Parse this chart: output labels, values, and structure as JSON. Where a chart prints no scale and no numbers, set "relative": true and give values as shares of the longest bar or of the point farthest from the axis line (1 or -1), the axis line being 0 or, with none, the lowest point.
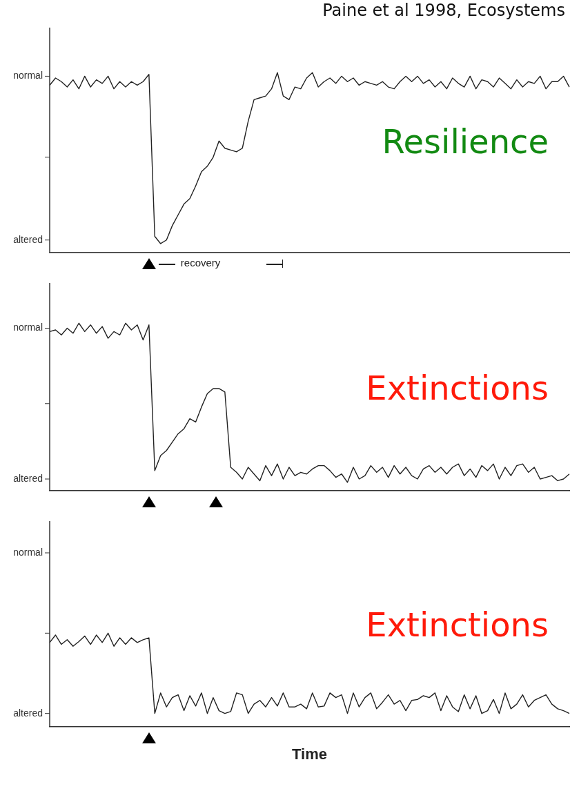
{
  "chart_data": [
    {
      "type": "line",
      "title": "Paine et al 1998, Ecosystems",
      "relative": true,
      "annotations": [
        "Resilience",
        "recovery",
        "normal",
        "altered"
      ],
      "tick_labels": "y",
      "marker": "none",
      "line_style": "solid",
      "grid": false,
      "legend": false,
      "categories": [
        null,
        null,
        null,
        null,
        null,
        null,
        null,
        null,
        null,
        null,
        null,
        null,
        null,
        null,
        null,
        null,
        null,
        null,
        null,
        null,
        null,
        null,
        null,
        null,
        null,
        null,
        null,
        null,
        null,
        null,
        null,
        null,
        null,
        null,
        null,
        null,
        null,
        null,
        null,
        null,
        null,
        null,
        null,
        null,
        null,
        null,
        null,
        null,
        null,
        null,
        null,
        null,
        null,
        null,
        null,
        null,
        null,
        null,
        null,
        null,
        null,
        null,
        null,
        null,
        null,
        null,
        null,
        null,
        null,
        null,
        null,
        null,
        null,
        null,
        null,
        null,
        null,
        null,
        null,
        null,
        null,
        null,
        null,
        null,
        null,
        null,
        null,
        null,
        null,
        null
      ],
      "series": [
        {
          "color": "#222222",
          "values": [
            0.93,
            0.97,
            0.95,
            0.92,
            0.96,
            0.91,
            0.98,
            0.92,
            0.96,
            0.94,
            0.98,
            0.91,
            0.95,
            0.92,
            0.95,
            0.93,
            0.95,
            0.99,
            0.09,
            0.05,
            0.07,
            0.15,
            0.21,
            0.27,
            0.3,
            0.37,
            0.45,
            0.48,
            0.53,
            0.62,
            0.58,
            0.57,
            0.56,
            0.58,
            0.73,
            0.85,
            0.86,
            0.87,
            0.91,
            1.0,
            0.87,
            0.85,
            0.92,
            0.91,
            0.97,
            1.0,
            0.92,
            0.95,
            0.97,
            0.94,
            0.98,
            0.95,
            0.97,
            0.93,
            0.95,
            0.94,
            0.93,
            0.95,
            0.92,
            0.91,
            0.95,
            0.98,
            0.95,
            0.98,
            0.94,
            0.96,
            0.92,
            0.95,
            0.91,
            0.97,
            0.94,
            0.92,
            0.98,
            0.91,
            0.96,
            0.95,
            0.92,
            0.97,
            0.94,
            0.91,
            0.96,
            0.92,
            0.95,
            0.94,
            0.98,
            0.91,
            0.95,
            0.95,
            0.98,
            0.92
          ]
        }
      ]
    },
    {
      "type": "line",
      "relative": true,
      "annotations": [
        "Extinctions",
        "normal",
        "altered"
      ],
      "tick_labels": "y",
      "marker": "none",
      "line_style": "solid",
      "grid": false,
      "legend": false,
      "categories": [
        null,
        null,
        null,
        null,
        null,
        null,
        null,
        null,
        null,
        null,
        null,
        null,
        null,
        null,
        null,
        null,
        null,
        null,
        null,
        null,
        null,
        null,
        null,
        null,
        null,
        null,
        null,
        null,
        null,
        null,
        null,
        null,
        null,
        null,
        null,
        null,
        null,
        null,
        null,
        null,
        null,
        null,
        null,
        null,
        null,
        null,
        null,
        null,
        null,
        null,
        null,
        null,
        null,
        null,
        null,
        null,
        null,
        null,
        null,
        null,
        null,
        null,
        null,
        null,
        null,
        null,
        null,
        null,
        null,
        null,
        null,
        null,
        null,
        null,
        null,
        null,
        null,
        null,
        null,
        null,
        null,
        null,
        null,
        null,
        null,
        null,
        null,
        null,
        null,
        null
      ],
      "series": [
        {
          "color": "#222222",
          "values": [
            0.95,
            0.96,
            0.93,
            0.97,
            0.94,
            1.0,
            0.95,
            0.99,
            0.94,
            0.98,
            0.91,
            0.95,
            0.93,
            1.0,
            0.96,
            0.99,
            0.9,
            0.99,
            0.12,
            0.21,
            0.24,
            0.29,
            0.34,
            0.37,
            0.43,
            0.41,
            0.5,
            0.58,
            0.61,
            0.61,
            0.59,
            0.14,
            0.11,
            0.07,
            0.14,
            0.1,
            0.06,
            0.15,
            0.09,
            0.16,
            0.07,
            0.14,
            0.09,
            0.11,
            0.1,
            0.13,
            0.15,
            0.15,
            0.12,
            0.08,
            0.1,
            0.05,
            0.14,
            0.07,
            0.09,
            0.15,
            0.11,
            0.14,
            0.08,
            0.15,
            0.1,
            0.14,
            0.09,
            0.07,
            0.13,
            0.15,
            0.11,
            0.14,
            0.1,
            0.14,
            0.16,
            0.09,
            0.13,
            0.08,
            0.15,
            0.12,
            0.16,
            0.07,
            0.14,
            0.09,
            0.15,
            0.16,
            0.11,
            0.14,
            0.07,
            0.08,
            0.09,
            0.06,
            0.07,
            0.1
          ]
        }
      ]
    },
    {
      "type": "line",
      "relative": true,
      "xlabel": "Time",
      "annotations": [
        "Extinctions",
        "normal",
        "altered"
      ],
      "tick_labels": "y",
      "marker": "none",
      "line_style": "solid",
      "grid": false,
      "legend": false,
      "categories": [
        null,
        null,
        null,
        null,
        null,
        null,
        null,
        null,
        null,
        null,
        null,
        null,
        null,
        null,
        null,
        null,
        null,
        null,
        null,
        null,
        null,
        null,
        null,
        null,
        null,
        null,
        null,
        null,
        null,
        null,
        null,
        null,
        null,
        null,
        null,
        null,
        null,
        null,
        null,
        null,
        null,
        null,
        null,
        null,
        null,
        null,
        null,
        null,
        null,
        null,
        null,
        null,
        null,
        null,
        null,
        null,
        null,
        null,
        null,
        null,
        null,
        null,
        null,
        null,
        null,
        null,
        null,
        null,
        null,
        null,
        null,
        null,
        null,
        null,
        null,
        null,
        null,
        null,
        null,
        null,
        null,
        null,
        null,
        null,
        null,
        null,
        null,
        null,
        null,
        null
      ],
      "series": [
        {
          "color": "#222222",
          "values": [
            0.9,
            0.98,
            0.88,
            0.93,
            0.86,
            0.91,
            0.97,
            0.88,
            0.98,
            0.9,
            1.0,
            0.86,
            0.95,
            0.88,
            0.95,
            0.9,
            0.93,
            0.95,
            0.14,
            0.36,
            0.21,
            0.31,
            0.34,
            0.17,
            0.33,
            0.22,
            0.36,
            0.14,
            0.31,
            0.17,
            0.14,
            0.16,
            0.36,
            0.34,
            0.14,
            0.24,
            0.28,
            0.21,
            0.31,
            0.22,
            0.36,
            0.21,
            0.21,
            0.24,
            0.19,
            0.36,
            0.21,
            0.22,
            0.36,
            0.31,
            0.34,
            0.14,
            0.36,
            0.21,
            0.31,
            0.36,
            0.19,
            0.26,
            0.34,
            0.24,
            0.28,
            0.17,
            0.28,
            0.29,
            0.33,
            0.31,
            0.36,
            0.17,
            0.33,
            0.21,
            0.16,
            0.34,
            0.19,
            0.33,
            0.14,
            0.17,
            0.29,
            0.14,
            0.36,
            0.19,
            0.24,
            0.34,
            0.21,
            0.28,
            0.31,
            0.34,
            0.24,
            0.19,
            0.17,
            0.14
          ]
        }
      ]
    }
  ]
}
